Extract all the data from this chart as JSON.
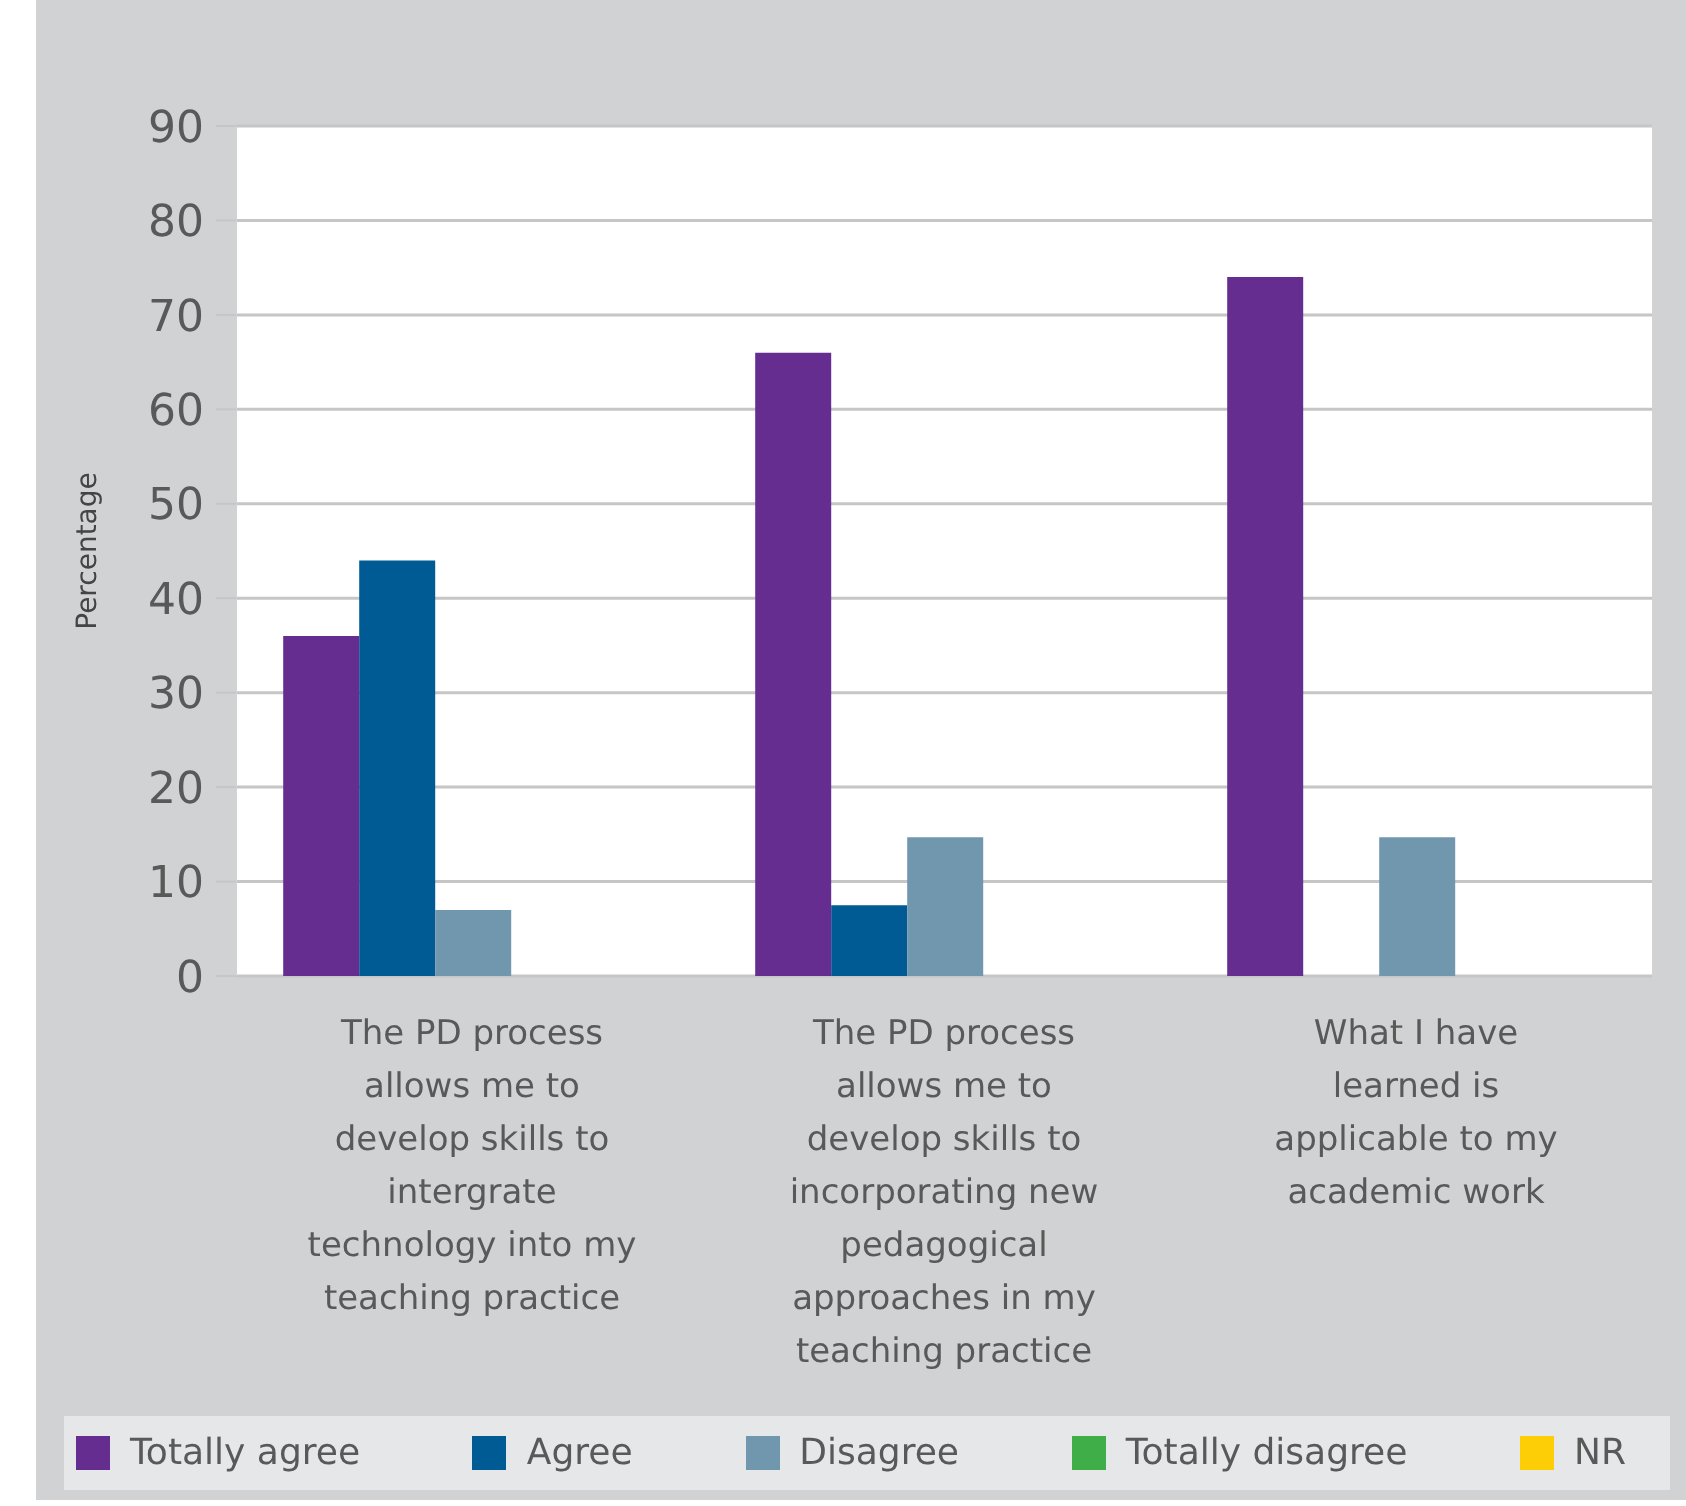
{
  "chart_data": {
    "type": "bar",
    "ylabel": "Percentage",
    "categories": [
      "The PD process allows me to develop skills to intergrate technology into my teaching practice",
      "The PD process allows me to develop skills to incorporating new pedagogical approaches in my teaching practice",
      "What I have learned is applicable to my academic work"
    ],
    "series": [
      {
        "name": "Totally agree",
        "color": "#652d90",
        "values": [
          36,
          66,
          74
        ]
      },
      {
        "name": "Agree",
        "color": "#005a94",
        "values": [
          44,
          7.5,
          null
        ]
      },
      {
        "name": "Disagree",
        "color": "#7197ae",
        "values": [
          7,
          14.7,
          14.7
        ]
      },
      {
        "name": "Totally disagree",
        "color": "#3fae49",
        "values": [
          null,
          null,
          null
        ]
      },
      {
        "name": "NR",
        "color": "#fdcd06",
        "values": [
          null,
          null,
          null
        ]
      }
    ],
    "ylim": [
      0,
      90
    ],
    "yticks": [
      0,
      10,
      20,
      30,
      40,
      50,
      60,
      70,
      80,
      90
    ],
    "grid": "y",
    "legend": "bottom"
  }
}
